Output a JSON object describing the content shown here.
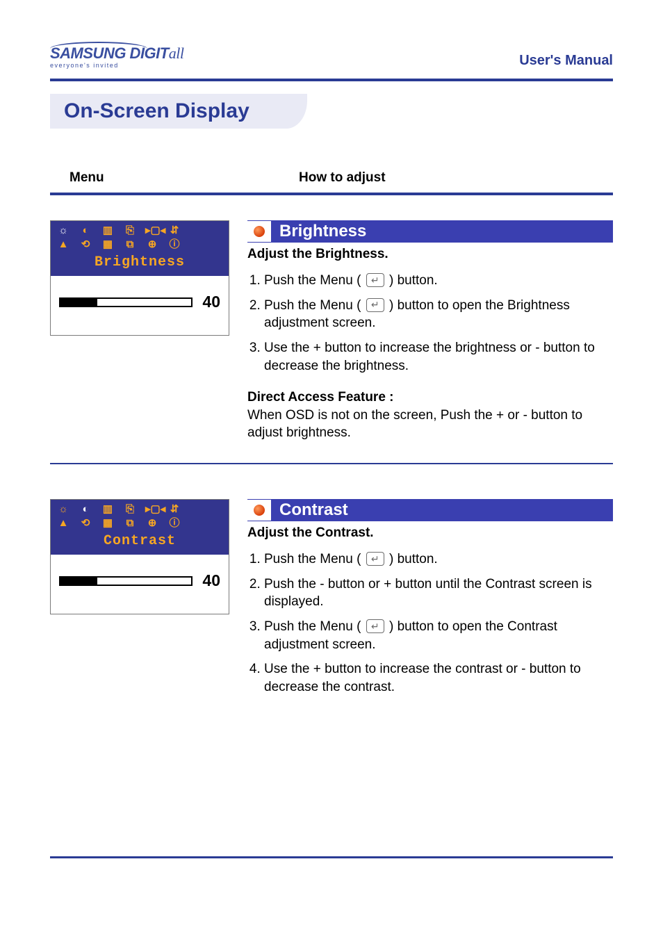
{
  "colors": {
    "brand_blue": "#2a3b94",
    "title_bg": "#e9eaf5",
    "feature_bar_bg": "#3a3fb0",
    "osd_top_bg": "#33358e",
    "osd_amber": "#f6a623",
    "bullet_gradient_from": "#ff9a5a",
    "bullet_gradient_to": "#d9400a",
    "icon_gray": "#6b6b6b"
  },
  "header": {
    "logo_main": "SAMSUNG DIGIT",
    "logo_suffix": "all",
    "logo_tag": "everyone's invited",
    "manual_label": "User's Manual"
  },
  "page_title": "On-Screen Display",
  "columns": {
    "menu": "Menu",
    "howto": "How to adjust"
  },
  "sections": [
    {
      "osd": {
        "label": "Brightness",
        "value": 40,
        "percent": 28,
        "active_icon_index": 0,
        "icons_row1": [
          "☼",
          "◐",
          "▥",
          "⎘",
          "▸▢◂",
          "⇵"
        ],
        "icons_row2": [
          "▲",
          "⟲",
          "▦",
          "⧉",
          "⊕",
          "ⓘ"
        ]
      },
      "feature": {
        "title": "Brightness",
        "subhead": "Adjust the Brightness.",
        "steps": [
          {
            "pre": "Push the Menu ( ",
            "icon": true,
            "post": " ) button."
          },
          {
            "pre": "Push the Menu ( ",
            "icon": true,
            "post": " ) button to open the Brightness adjustment screen."
          },
          {
            "pre": "Use the + button to increase the brightness or - button to decrease the brightness.",
            "icon": false,
            "post": ""
          }
        ],
        "direct_access": {
          "title": "Direct Access Feature :",
          "body": "When OSD is not on the screen, Push the + or - button to adjust brightness."
        }
      }
    },
    {
      "osd": {
        "label": "Contrast",
        "value": 40,
        "percent": 28,
        "active_icon_index": 1,
        "icons_row1": [
          "☼",
          "◐",
          "▥",
          "⎘",
          "▸▢◂",
          "⇵"
        ],
        "icons_row2": [
          "▲",
          "⟲",
          "▦",
          "⧉",
          "⊕",
          "ⓘ"
        ]
      },
      "feature": {
        "title": "Contrast",
        "subhead": "Adjust the Contrast.",
        "steps": [
          {
            "pre": "Push the Menu ( ",
            "icon": true,
            "post": " ) button."
          },
          {
            "pre": "Push the - button or + button until the Contrast screen is displayed.",
            "icon": false,
            "post": ""
          },
          {
            "pre": "Push the Menu ( ",
            "icon": true,
            "post": " ) button to open the Contrast adjustment screen."
          },
          {
            "pre": "Use the + button to increase the contrast or - button to decrease the contrast.",
            "icon": false,
            "post": ""
          }
        ],
        "direct_access": null
      }
    }
  ]
}
